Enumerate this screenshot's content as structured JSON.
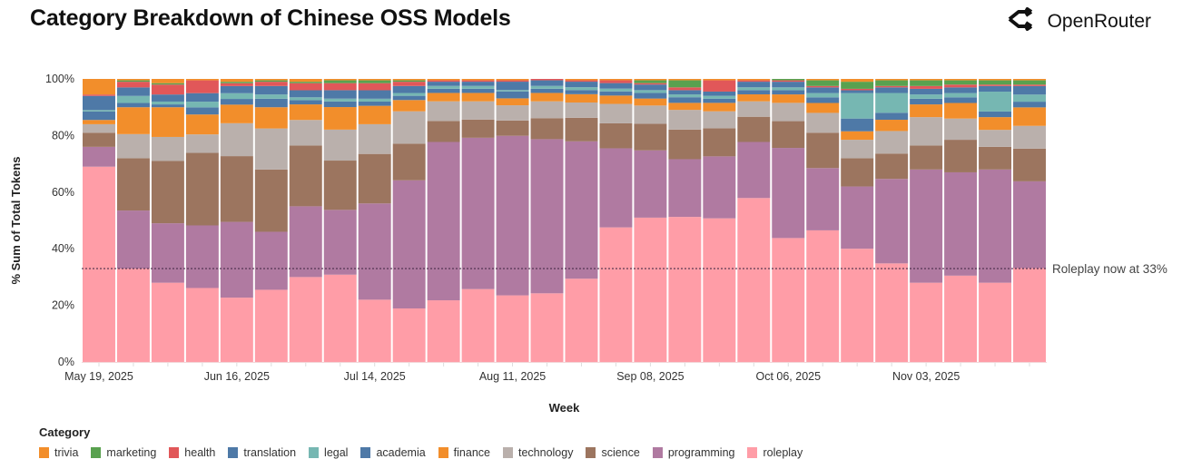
{
  "header": {
    "title": "Category Breakdown of Chinese OSS Models",
    "brand": "OpenRouter",
    "brand_icon": "openrouter-logo-icon"
  },
  "chart_data": {
    "type": "bar",
    "stacked": true,
    "normalized": true,
    "title": "Category Breakdown of Chinese OSS Models",
    "xlabel": "Week",
    "ylabel": "% Sum of Total Tokens",
    "ylim": [
      0,
      100
    ],
    "y_ticks": [
      "0%",
      "20%",
      "40%",
      "60%",
      "80%",
      "100%"
    ],
    "x_tick_labels": [
      {
        "index": 0,
        "label": "May 19, 2025"
      },
      {
        "index": 4,
        "label": "Jun 16, 2025"
      },
      {
        "index": 8,
        "label": "Jul 14, 2025"
      },
      {
        "index": 12,
        "label": "Aug 11, 2025"
      },
      {
        "index": 16,
        "label": "Sep 08, 2025"
      },
      {
        "index": 20,
        "label": "Oct 06, 2025"
      },
      {
        "index": 24,
        "label": "Nov 03, 2025"
      }
    ],
    "categories": [
      "2025-05-19",
      "2025-05-26",
      "2025-06-02",
      "2025-06-09",
      "2025-06-16",
      "2025-06-23",
      "2025-06-30",
      "2025-07-07",
      "2025-07-14",
      "2025-07-21",
      "2025-07-28",
      "2025-08-04",
      "2025-08-11",
      "2025-08-18",
      "2025-08-25",
      "2025-09-01",
      "2025-09-08",
      "2025-09-15",
      "2025-09-22",
      "2025-09-29",
      "2025-10-06",
      "2025-10-13",
      "2025-10-20",
      "2025-10-27",
      "2025-11-03",
      "2025-11-10",
      "2025-11-17",
      "2025-11-24"
    ],
    "series": [
      {
        "name": "roleplay",
        "color": "#FF9DA7",
        "values": [
          69,
          33,
          28,
          26,
          22.5,
          25.5,
          30,
          31,
          22,
          19,
          22,
          26,
          24,
          24.5,
          30,
          48.5,
          51.5,
          51.5,
          51,
          58.5,
          44,
          46.5,
          40,
          35,
          28,
          30.5,
          28,
          33
        ]
      },
      {
        "name": "programming",
        "color": "#B07AA1",
        "values": [
          7,
          20.5,
          21,
          22,
          26.5,
          20.5,
          25,
          23,
          34,
          45.5,
          56.5,
          54,
          57.5,
          55,
          49.5,
          28.5,
          24,
          20.5,
          22,
          20,
          32,
          22,
          22,
          30,
          40,
          36.5,
          40,
          30.5
        ]
      },
      {
        "name": "science",
        "color": "#9C755F",
        "values": [
          5,
          18.5,
          22,
          25.5,
          23,
          22,
          21.5,
          17.5,
          17.5,
          13,
          7.5,
          6.5,
          5.5,
          7.5,
          8.5,
          9,
          9.5,
          10.5,
          10,
          9,
          9.5,
          12.5,
          10,
          9,
          8.5,
          11.5,
          8,
          11.5
        ]
      },
      {
        "name": "technology",
        "color": "#BAB0AC",
        "values": [
          3,
          8.5,
          8.5,
          6.5,
          11.5,
          14.5,
          9,
          11,
          10.5,
          11.5,
          7,
          6.5,
          5.5,
          6,
          5.5,
          7,
          6.5,
          7,
          6,
          5.5,
          6.5,
          7,
          6.5,
          8,
          10,
          7.5,
          6,
          8
        ]
      },
      {
        "name": "finance",
        "color": "#F28E2B",
        "values": [
          1.5,
          9.5,
          10.5,
          7,
          6.5,
          7.5,
          5.5,
          8,
          6.5,
          4,
          3,
          3,
          2.5,
          3,
          3,
          3,
          2.5,
          2.5,
          3,
          2.5,
          3,
          3.5,
          3,
          4,
          4.5,
          5.5,
          4.5,
          6.5
        ]
      },
      {
        "name": "academia",
        "color": "#4E79A7",
        "values": [
          3,
          1.5,
          1,
          2.5,
          2,
          3,
          1.5,
          2,
          1.5,
          1.5,
          1.5,
          1.5,
          2.5,
          1.5,
          1.5,
          1.5,
          2,
          2,
          1.5,
          1.5,
          1.5,
          2,
          4.5,
          2.5,
          2,
          2,
          2,
          2
        ]
      },
      {
        "name": "legal",
        "color": "#76B7B2",
        "values": [
          0.5,
          2.5,
          1,
          2,
          2,
          1.5,
          1,
          1,
          1,
          1,
          1,
          1,
          0.5,
          1,
          1,
          1,
          1,
          1,
          1,
          1,
          1,
          1.5,
          9,
          7,
          1.5,
          1.5,
          7,
          2.5
        ]
      },
      {
        "name": "translation",
        "color": "#4E79A7",
        "values": [
          5,
          3,
          2.5,
          3,
          2.5,
          3,
          2.5,
          3,
          3,
          2.5,
          1.5,
          1.5,
          3,
          2,
          2,
          2,
          2,
          1.5,
          1.5,
          2,
          2,
          2,
          1,
          2,
          2,
          2,
          2,
          3
        ]
      },
      {
        "name": "health",
        "color": "#E15759",
        "values": [
          0.5,
          2,
          3.5,
          4.5,
          1,
          1.5,
          2.5,
          2.5,
          2.5,
          1.5,
          0.5,
          0.5,
          0.5,
          0.5,
          0.5,
          1,
          0.5,
          1,
          4,
          0.5,
          0.5,
          0.5,
          0.5,
          0.5,
          1,
          1,
          0.5,
          0.5
        ]
      },
      {
        "name": "marketing",
        "color": "#59A14F",
        "values": [
          0,
          0.5,
          0.5,
          0,
          0.5,
          0.5,
          0.5,
          1,
          1,
          0.5,
          0,
          0,
          0,
          0,
          0,
          0,
          1,
          2.5,
          0,
          0,
          0.5,
          2,
          2.5,
          2,
          2,
          1.5,
          1.5,
          1.5
        ]
      },
      {
        "name": "trivia",
        "color": "#F28E2B",
        "values": [
          5.5,
          0.5,
          1.5,
          0.5,
          1,
          0.5,
          1,
          0.5,
          0.5,
          0.5,
          0.5,
          0.5,
          0.5,
          0,
          0.5,
          0.5,
          0.5,
          0.5,
          0.5,
          0.5,
          0,
          0.5,
          1,
          0.5,
          0.5,
          0.5,
          0.5,
          0.5
        ]
      }
    ],
    "reference_line": {
      "value": 33,
      "label": "Roleplay now at 33%",
      "style": "dotted"
    },
    "legend": {
      "title": "Category",
      "placement": "bottom-left",
      "items": [
        {
          "label": "trivia",
          "color": "#F28E2B"
        },
        {
          "label": "marketing",
          "color": "#59A14F"
        },
        {
          "label": "health",
          "color": "#E15759"
        },
        {
          "label": "translation",
          "color": "#4E79A7"
        },
        {
          "label": "legal",
          "color": "#76B7B2"
        },
        {
          "label": "academia",
          "color": "#4E79A7"
        },
        {
          "label": "finance",
          "color": "#F28E2B"
        },
        {
          "label": "technology",
          "color": "#BAB0AC"
        },
        {
          "label": "science",
          "color": "#9C755F"
        },
        {
          "label": "programming",
          "color": "#B07AA1"
        },
        {
          "label": "roleplay",
          "color": "#FF9DA7"
        }
      ]
    },
    "grid": false
  }
}
